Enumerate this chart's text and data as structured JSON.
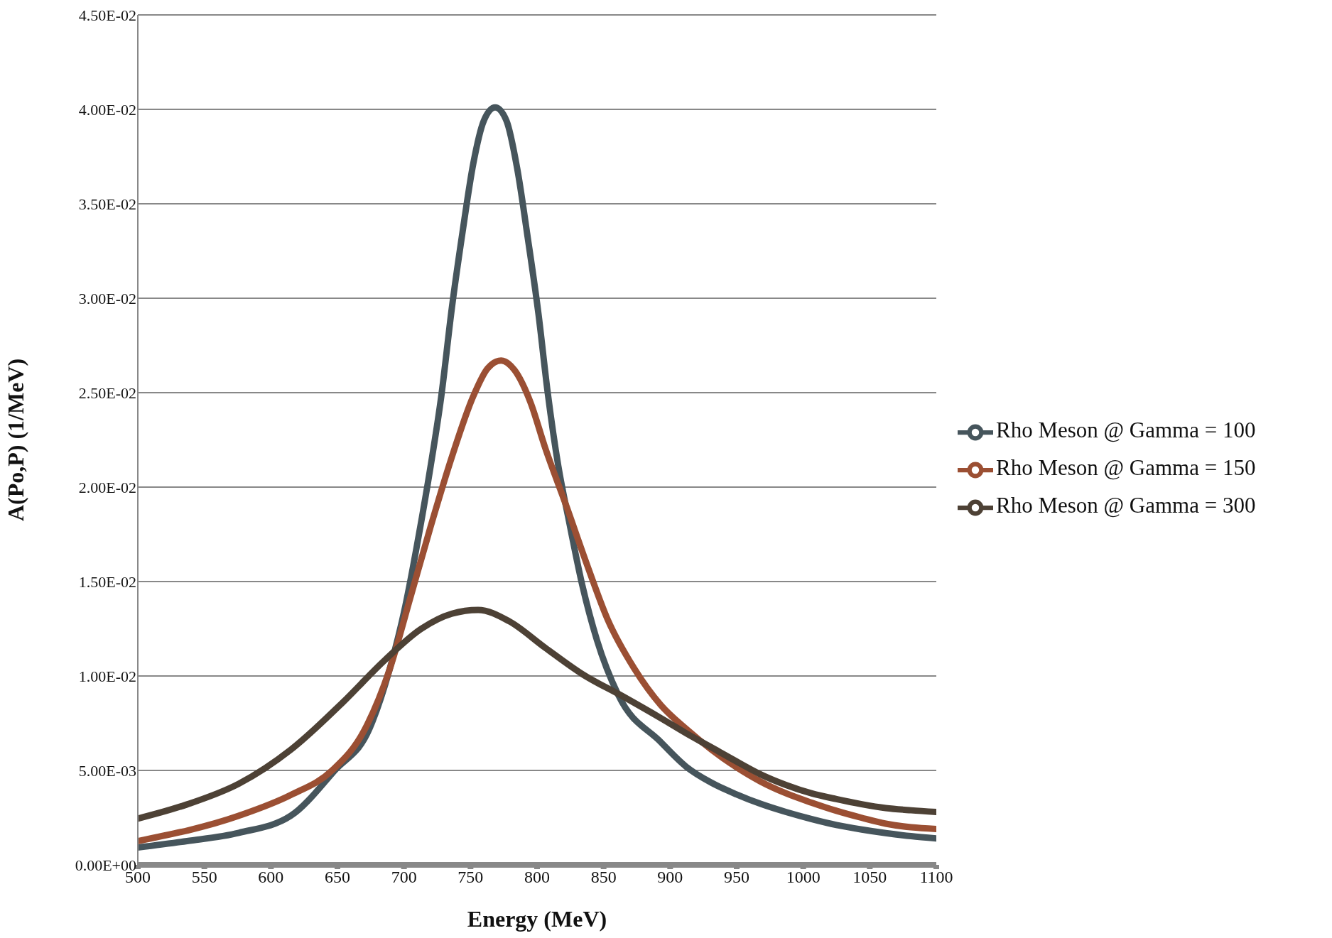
{
  "chart_data": {
    "type": "line",
    "xlabel": "Energy (MeV)",
    "ylabel": "A(Po,P) (1/MeV)",
    "xlim": [
      500,
      1100
    ],
    "xticks": [
      500,
      550,
      600,
      650,
      700,
      750,
      800,
      850,
      900,
      950,
      1000,
      1050,
      1100
    ],
    "ylim": [
      0,
      0.045
    ],
    "yticks": [
      {
        "value": 0,
        "label": "0.00E+00"
      },
      {
        "value": 0.005,
        "label": "5.00E-03"
      },
      {
        "value": 0.01,
        "label": "1.00E-02"
      },
      {
        "value": 0.015,
        "label": "1.50E-02"
      },
      {
        "value": 0.02,
        "label": "2.00E-02"
      },
      {
        "value": 0.025,
        "label": "2.50E-02"
      },
      {
        "value": 0.03,
        "label": "3.00E-02"
      },
      {
        "value": 0.035,
        "label": "3.50E-02"
      },
      {
        "value": 0.04,
        "label": "4.00E-02"
      },
      {
        "value": 0.045,
        "label": "4.50E-02"
      }
    ],
    "grid": "y",
    "legend": "right",
    "marker": "none",
    "line_style": "solid",
    "series": [
      {
        "name": "Rho Meson @ Gamma = 100",
        "color": "#46555c",
        "x": [
          500,
          537,
          576,
          615,
          648,
          674,
          689,
          701,
          711,
          720,
          728,
          736,
          744,
          752,
          760,
          768.5,
          777,
          785,
          793,
          801,
          808,
          816,
          824,
          834,
          845,
          861,
          893,
          912,
          931,
          950,
          968,
          987,
          1006,
          1025,
          1044,
          1062,
          1081,
          1100
        ],
        "values": [
          0.00092,
          0.00126,
          0.0017,
          0.0026,
          0.005,
          0.0072,
          0.0103,
          0.0137,
          0.0174,
          0.0211,
          0.0248,
          0.0295,
          0.0335,
          0.0371,
          0.0394,
          0.0401,
          0.0394,
          0.0369,
          0.0332,
          0.0292,
          0.025,
          0.0211,
          0.0182,
          0.0148,
          0.0119,
          0.009,
          0.0065,
          0.0052,
          0.00435,
          0.00373,
          0.00323,
          0.0028,
          0.00243,
          0.00211,
          0.00187,
          0.00168,
          0.00152,
          0.0014
        ]
      },
      {
        "name": "Rho Meson @ Gamma = 150",
        "color": "#9b4f33",
        "x": [
          500,
          576,
          615,
          646,
          670,
          689,
          705,
          720,
          736,
          752,
          763,
          773,
          783,
          795,
          806,
          822,
          838,
          853,
          873,
          893,
          912,
          931,
          950,
          968,
          987,
          1006,
          1025,
          1044,
          1062,
          1081,
          1100
        ],
        "values": [
          0.00126,
          0.0026,
          0.0037,
          0.005,
          0.0071,
          0.0103,
          0.0142,
          0.0179,
          0.0216,
          0.0248,
          0.0263,
          0.0267,
          0.0262,
          0.0245,
          0.0221,
          0.019,
          0.0158,
          0.013,
          0.0104,
          0.00846,
          0.0072,
          0.0061,
          0.00516,
          0.00441,
          0.00379,
          0.0033,
          0.00286,
          0.00249,
          0.00218,
          0.00199,
          0.0019
        ]
      },
      {
        "name": "Rho Meson @ Gamma = 300",
        "color": "#4d4135",
        "x": [
          500,
          537,
          576,
          615,
          654,
          685,
          713,
          736,
          755.7,
          779,
          806,
          834,
          865,
          893,
          912,
          931,
          950,
          968,
          987,
          1006,
          1025,
          1044,
          1062,
          1081,
          1100
        ],
        "values": [
          0.00245,
          0.0032,
          0.0043,
          0.0061,
          0.0086,
          0.0108,
          0.0125,
          0.0133,
          0.0135,
          0.0129,
          0.0115,
          0.0101,
          0.0089,
          0.00777,
          0.00697,
          0.00622,
          0.00547,
          0.00479,
          0.00423,
          0.00379,
          0.00348,
          0.00321,
          0.00301,
          0.00289,
          0.0028
        ]
      }
    ]
  }
}
